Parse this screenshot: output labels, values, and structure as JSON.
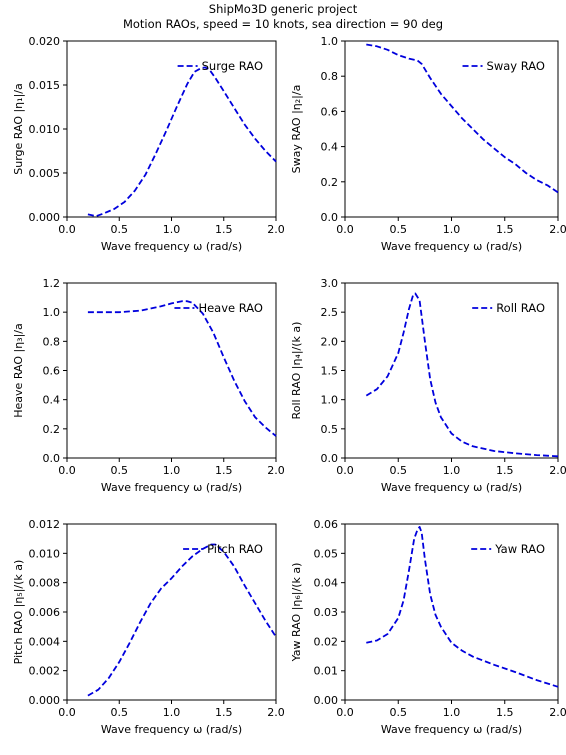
{
  "figure": {
    "title_line1": "ShipMo3D generic project",
    "title_line2": "Motion RAOs, speed = 10 knots, sea direction = 90 deg",
    "series_color": "#0000dd"
  },
  "chart_data": [
    {
      "type": "line",
      "legend": "Surge RAO",
      "legend_position": "top-right",
      "xlabel": "Wave frequency ω (rad/s)",
      "ylabel": "Surge RAO |η₁|/a",
      "xlim": [
        0,
        2.0
      ],
      "ylim": [
        0,
        0.02
      ],
      "xticks": [
        "0.0",
        "0.5",
        "1.0",
        "1.5",
        "2.0"
      ],
      "yticks": [
        "0.000",
        "0.005",
        "0.010",
        "0.015",
        "0.020"
      ],
      "x": [
        0.2,
        0.28,
        0.35,
        0.45,
        0.55,
        0.65,
        0.75,
        0.85,
        0.95,
        1.05,
        1.15,
        1.22,
        1.28,
        1.32,
        1.36,
        1.42,
        1.5,
        1.6,
        1.7,
        1.8,
        1.9,
        2.0
      ],
      "y": [
        0.0003,
        0.0001,
        0.0004,
        0.0009,
        0.0017,
        0.003,
        0.0048,
        0.0072,
        0.0098,
        0.0125,
        0.0151,
        0.0165,
        0.0169,
        0.017,
        0.0168,
        0.0158,
        0.0143,
        0.0124,
        0.0105,
        0.0089,
        0.0075,
        0.0063
      ]
    },
    {
      "type": "line",
      "legend": "Sway RAO",
      "legend_position": "top-right",
      "xlabel": "Wave frequency ω (rad/s)",
      "ylabel": "Sway RAO |η₂|/a",
      "xlim": [
        0,
        2.0
      ],
      "ylim": [
        0,
        1.0
      ],
      "xticks": [
        "0.0",
        "0.5",
        "1.0",
        "1.5",
        "2.0"
      ],
      "yticks": [
        "0.0",
        "0.2",
        "0.4",
        "0.6",
        "0.8",
        "1.0"
      ],
      "x": [
        0.2,
        0.3,
        0.4,
        0.5,
        0.6,
        0.68,
        0.72,
        0.8,
        0.9,
        1.0,
        1.1,
        1.2,
        1.3,
        1.4,
        1.5,
        1.6,
        1.7,
        1.8,
        1.9,
        2.0
      ],
      "y": [
        0.98,
        0.97,
        0.95,
        0.92,
        0.9,
        0.89,
        0.87,
        0.79,
        0.7,
        0.63,
        0.56,
        0.5,
        0.44,
        0.39,
        0.34,
        0.3,
        0.25,
        0.21,
        0.18,
        0.14
      ]
    },
    {
      "type": "line",
      "legend": "Heave RAO",
      "legend_position": "top-right",
      "xlabel": "Wave frequency ω (rad/s)",
      "ylabel": "Heave RAO |η₃|/a",
      "xlim": [
        0,
        2.0
      ],
      "ylim": [
        0,
        1.2
      ],
      "xticks": [
        "0.0",
        "0.5",
        "1.0",
        "1.5",
        "2.0"
      ],
      "yticks": [
        "0.0",
        "0.2",
        "0.4",
        "0.6",
        "0.8",
        "1.0",
        "1.2"
      ],
      "x": [
        0.2,
        0.3,
        0.4,
        0.5,
        0.6,
        0.7,
        0.8,
        0.9,
        1.0,
        1.1,
        1.15,
        1.2,
        1.3,
        1.4,
        1.5,
        1.6,
        1.7,
        1.8,
        1.9,
        2.0
      ],
      "y": [
        1.0,
        1.0,
        1.0,
        1.0,
        1.005,
        1.01,
        1.025,
        1.04,
        1.06,
        1.075,
        1.075,
        1.065,
        0.99,
        0.86,
        0.69,
        0.53,
        0.39,
        0.28,
        0.21,
        0.15
      ]
    },
    {
      "type": "line",
      "legend": "Roll RAO",
      "legend_position": "top-right",
      "xlabel": "Wave frequency ω (rad/s)",
      "ylabel": "Roll RAO |η₄|/(k a)",
      "xlim": [
        0,
        2.0
      ],
      "ylim": [
        0,
        3.0
      ],
      "xticks": [
        "0.0",
        "0.5",
        "1.0",
        "1.5",
        "2.0"
      ],
      "yticks": [
        "0.0",
        "0.5",
        "1.0",
        "1.5",
        "2.0",
        "2.5",
        "3.0"
      ],
      "x": [
        0.2,
        0.3,
        0.4,
        0.5,
        0.55,
        0.6,
        0.64,
        0.66,
        0.7,
        0.75,
        0.8,
        0.85,
        0.9,
        1.0,
        1.1,
        1.2,
        1.4,
        1.6,
        1.8,
        2.0
      ],
      "y": [
        1.07,
        1.18,
        1.4,
        1.8,
        2.15,
        2.55,
        2.8,
        2.82,
        2.7,
        2.0,
        1.35,
        0.95,
        0.7,
        0.42,
        0.28,
        0.2,
        0.12,
        0.08,
        0.05,
        0.03
      ]
    },
    {
      "type": "line",
      "legend": "Pitch RAO",
      "legend_position": "top-right",
      "xlabel": "Wave frequency ω (rad/s)",
      "ylabel": "Pitch RAO |η₅|/(k a)",
      "xlim": [
        0,
        2.0
      ],
      "ylim": [
        0,
        0.012
      ],
      "xticks": [
        "0.0",
        "0.5",
        "1.0",
        "1.5",
        "2.0"
      ],
      "yticks": [
        "0.000",
        "0.002",
        "0.004",
        "0.006",
        "0.008",
        "0.010",
        "0.012"
      ],
      "x": [
        0.2,
        0.3,
        0.4,
        0.5,
        0.6,
        0.7,
        0.8,
        0.9,
        1.0,
        1.1,
        1.2,
        1.3,
        1.38,
        1.42,
        1.5,
        1.6,
        1.7,
        1.8,
        1.9,
        2.0
      ],
      "y": [
        0.0003,
        0.0007,
        0.0015,
        0.0026,
        0.0039,
        0.0053,
        0.0066,
        0.0076,
        0.0083,
        0.0091,
        0.0098,
        0.0103,
        0.0106,
        0.0106,
        0.0101,
        0.0091,
        0.0078,
        0.0066,
        0.0054,
        0.0043
      ]
    },
    {
      "type": "line",
      "legend": "Yaw RAO",
      "legend_position": "top-right",
      "xlabel": "Wave frequency ω (rad/s)",
      "ylabel": "Yaw RAO |η₆|/(k a)",
      "xlim": [
        0,
        2.0
      ],
      "ylim": [
        0,
        0.06
      ],
      "xticks": [
        "0.0",
        "0.5",
        "1.0",
        "1.5",
        "2.0"
      ],
      "yticks": [
        "0.00",
        "0.01",
        "0.02",
        "0.03",
        "0.04",
        "0.05",
        "0.06"
      ],
      "x": [
        0.2,
        0.3,
        0.4,
        0.5,
        0.55,
        0.6,
        0.65,
        0.68,
        0.7,
        0.72,
        0.75,
        0.8,
        0.85,
        0.9,
        1.0,
        1.1,
        1.2,
        1.4,
        1.6,
        1.8,
        2.0
      ],
      "y": [
        0.0195,
        0.0203,
        0.0225,
        0.028,
        0.034,
        0.044,
        0.055,
        0.058,
        0.059,
        0.057,
        0.048,
        0.036,
        0.029,
        0.025,
        0.0195,
        0.0168,
        0.0148,
        0.012,
        0.0095,
        0.0068,
        0.0045
      ]
    }
  ]
}
